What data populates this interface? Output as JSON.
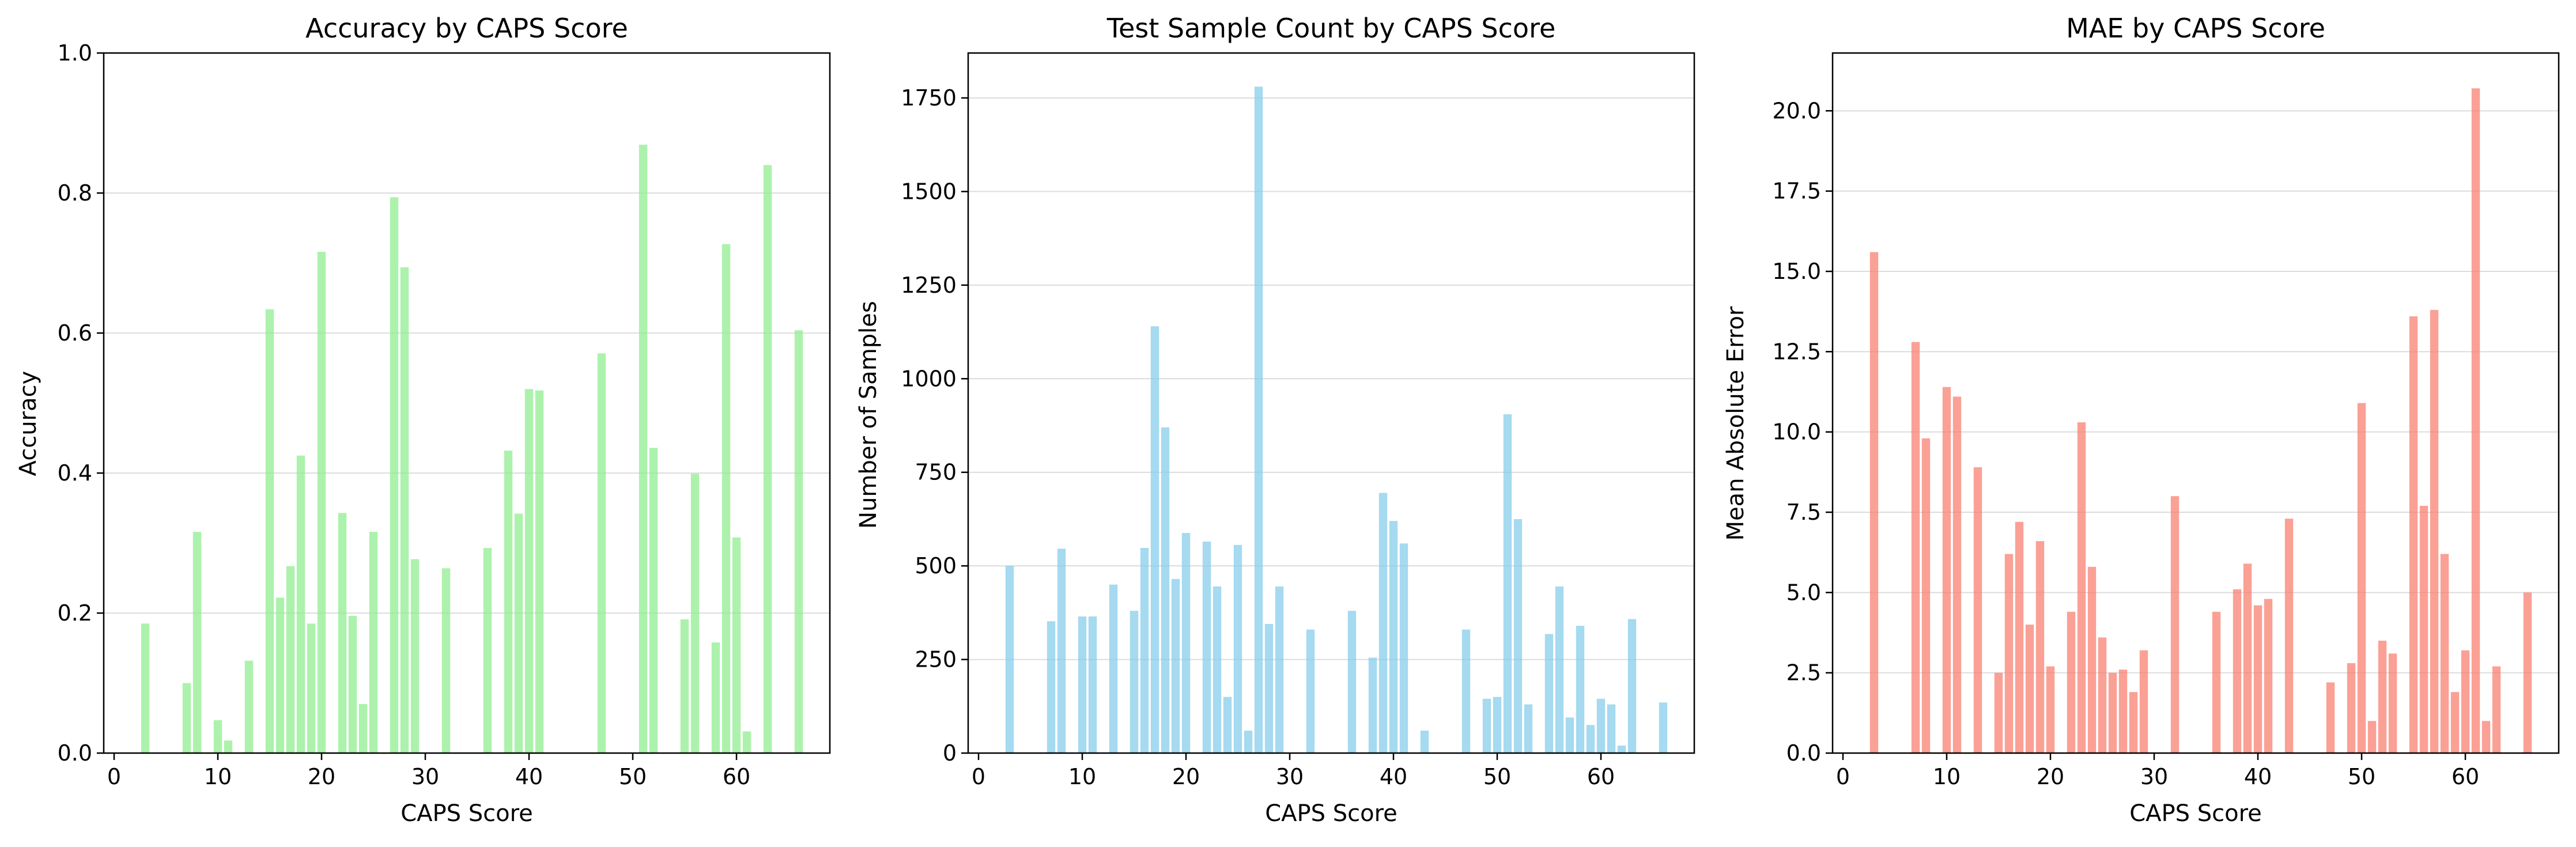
{
  "chart_data": [
    {
      "type": "bar",
      "title": "Accuracy by CAPS Score",
      "xlabel": "CAPS Score",
      "ylabel": "Accuracy",
      "xlim": [
        -1,
        69
      ],
      "ylim": [
        0,
        1.0
      ],
      "xticks": [
        "0",
        "10",
        "20",
        "30",
        "40",
        "50",
        "60"
      ],
      "yticks": [
        "0.0",
        "0.2",
        "0.4",
        "0.6",
        "0.8",
        "1.0"
      ],
      "grid": "horizontal",
      "color": "#90ee90",
      "x": [
        3,
        7,
        8,
        10,
        11,
        13,
        15,
        16,
        17,
        18,
        19,
        20,
        22,
        23,
        24,
        25,
        27,
        28,
        29,
        32,
        36,
        38,
        39,
        40,
        41,
        47,
        51,
        52,
        55,
        56,
        58,
        59,
        60,
        61,
        63,
        66
      ],
      "values": [
        0.185,
        0.1,
        0.316,
        0.047,
        0.018,
        0.132,
        0.634,
        0.222,
        0.267,
        0.425,
        0.185,
        0.716,
        0.343,
        0.196,
        0.07,
        0.316,
        0.794,
        0.694,
        0.277,
        0.264,
        0.293,
        0.432,
        0.342,
        0.52,
        0.518,
        0.571,
        0.869,
        0.436,
        0.191,
        0.399,
        0.158,
        0.727,
        0.308,
        0.031,
        0.84,
        0.604
      ]
    },
    {
      "type": "bar",
      "title": "Test Sample Count by CAPS Score",
      "xlabel": "CAPS Score",
      "ylabel": "Number of Samples",
      "xlim": [
        -1,
        69
      ],
      "ylim": [
        0,
        1870
      ],
      "xticks": [
        "0",
        "10",
        "20",
        "30",
        "40",
        "50",
        "60"
      ],
      "yticks": [
        "0",
        "250",
        "500",
        "750",
        "1000",
        "1250",
        "1500",
        "1750"
      ],
      "grid": "horizontal",
      "color": "#87ceeb",
      "x": [
        3,
        7,
        8,
        10,
        11,
        13,
        15,
        16,
        17,
        18,
        19,
        20,
        22,
        23,
        24,
        25,
        26,
        27,
        28,
        29,
        32,
        36,
        38,
        39,
        40,
        41,
        43,
        47,
        49,
        50,
        51,
        52,
        53,
        55,
        56,
        57,
        58,
        59,
        60,
        61,
        62,
        63,
        66
      ],
      "values": [
        500,
        352,
        546,
        365,
        365,
        450,
        380,
        548,
        1140,
        870,
        465,
        588,
        565,
        445,
        150,
        556,
        60,
        1780,
        345,
        445,
        330,
        380,
        255,
        695,
        620,
        560,
        60,
        330,
        145,
        150,
        905,
        625,
        130,
        318,
        445,
        95,
        340,
        75,
        145,
        130,
        20,
        358,
        135
      ]
    },
    {
      "type": "bar",
      "title": "MAE by CAPS Score",
      "xlabel": "CAPS Score",
      "ylabel": "Mean Absolute Error",
      "xlim": [
        -1,
        69
      ],
      "ylim": [
        0,
        21.8
      ],
      "xticks": [
        "0",
        "10",
        "20",
        "30",
        "40",
        "50",
        "60"
      ],
      "yticks": [
        "0.0",
        "2.5",
        "5.0",
        "7.5",
        "10.0",
        "12.5",
        "15.0",
        "17.5",
        "20.0"
      ],
      "grid": "horizontal",
      "color": "#fa8072",
      "x": [
        3,
        7,
        8,
        10,
        11,
        13,
        15,
        16,
        17,
        18,
        19,
        20,
        22,
        23,
        24,
        25,
        26,
        27,
        28,
        29,
        32,
        36,
        38,
        39,
        40,
        41,
        43,
        47,
        49,
        50,
        51,
        52,
        53,
        55,
        56,
        57,
        58,
        59,
        60,
        61,
        62,
        63,
        66
      ],
      "values": [
        15.6,
        12.8,
        9.8,
        11.4,
        11.1,
        8.9,
        2.5,
        6.2,
        7.2,
        4.0,
        6.6,
        2.7,
        4.4,
        10.3,
        5.8,
        3.6,
        2.5,
        2.6,
        1.9,
        3.2,
        8.0,
        4.4,
        5.1,
        5.9,
        4.6,
        4.8,
        7.3,
        2.2,
        2.8,
        10.9,
        1.0,
        3.5,
        3.1,
        13.6,
        7.7,
        13.8,
        6.2,
        1.9,
        3.2,
        20.7,
        1.0,
        2.7,
        5.0
      ]
    }
  ]
}
